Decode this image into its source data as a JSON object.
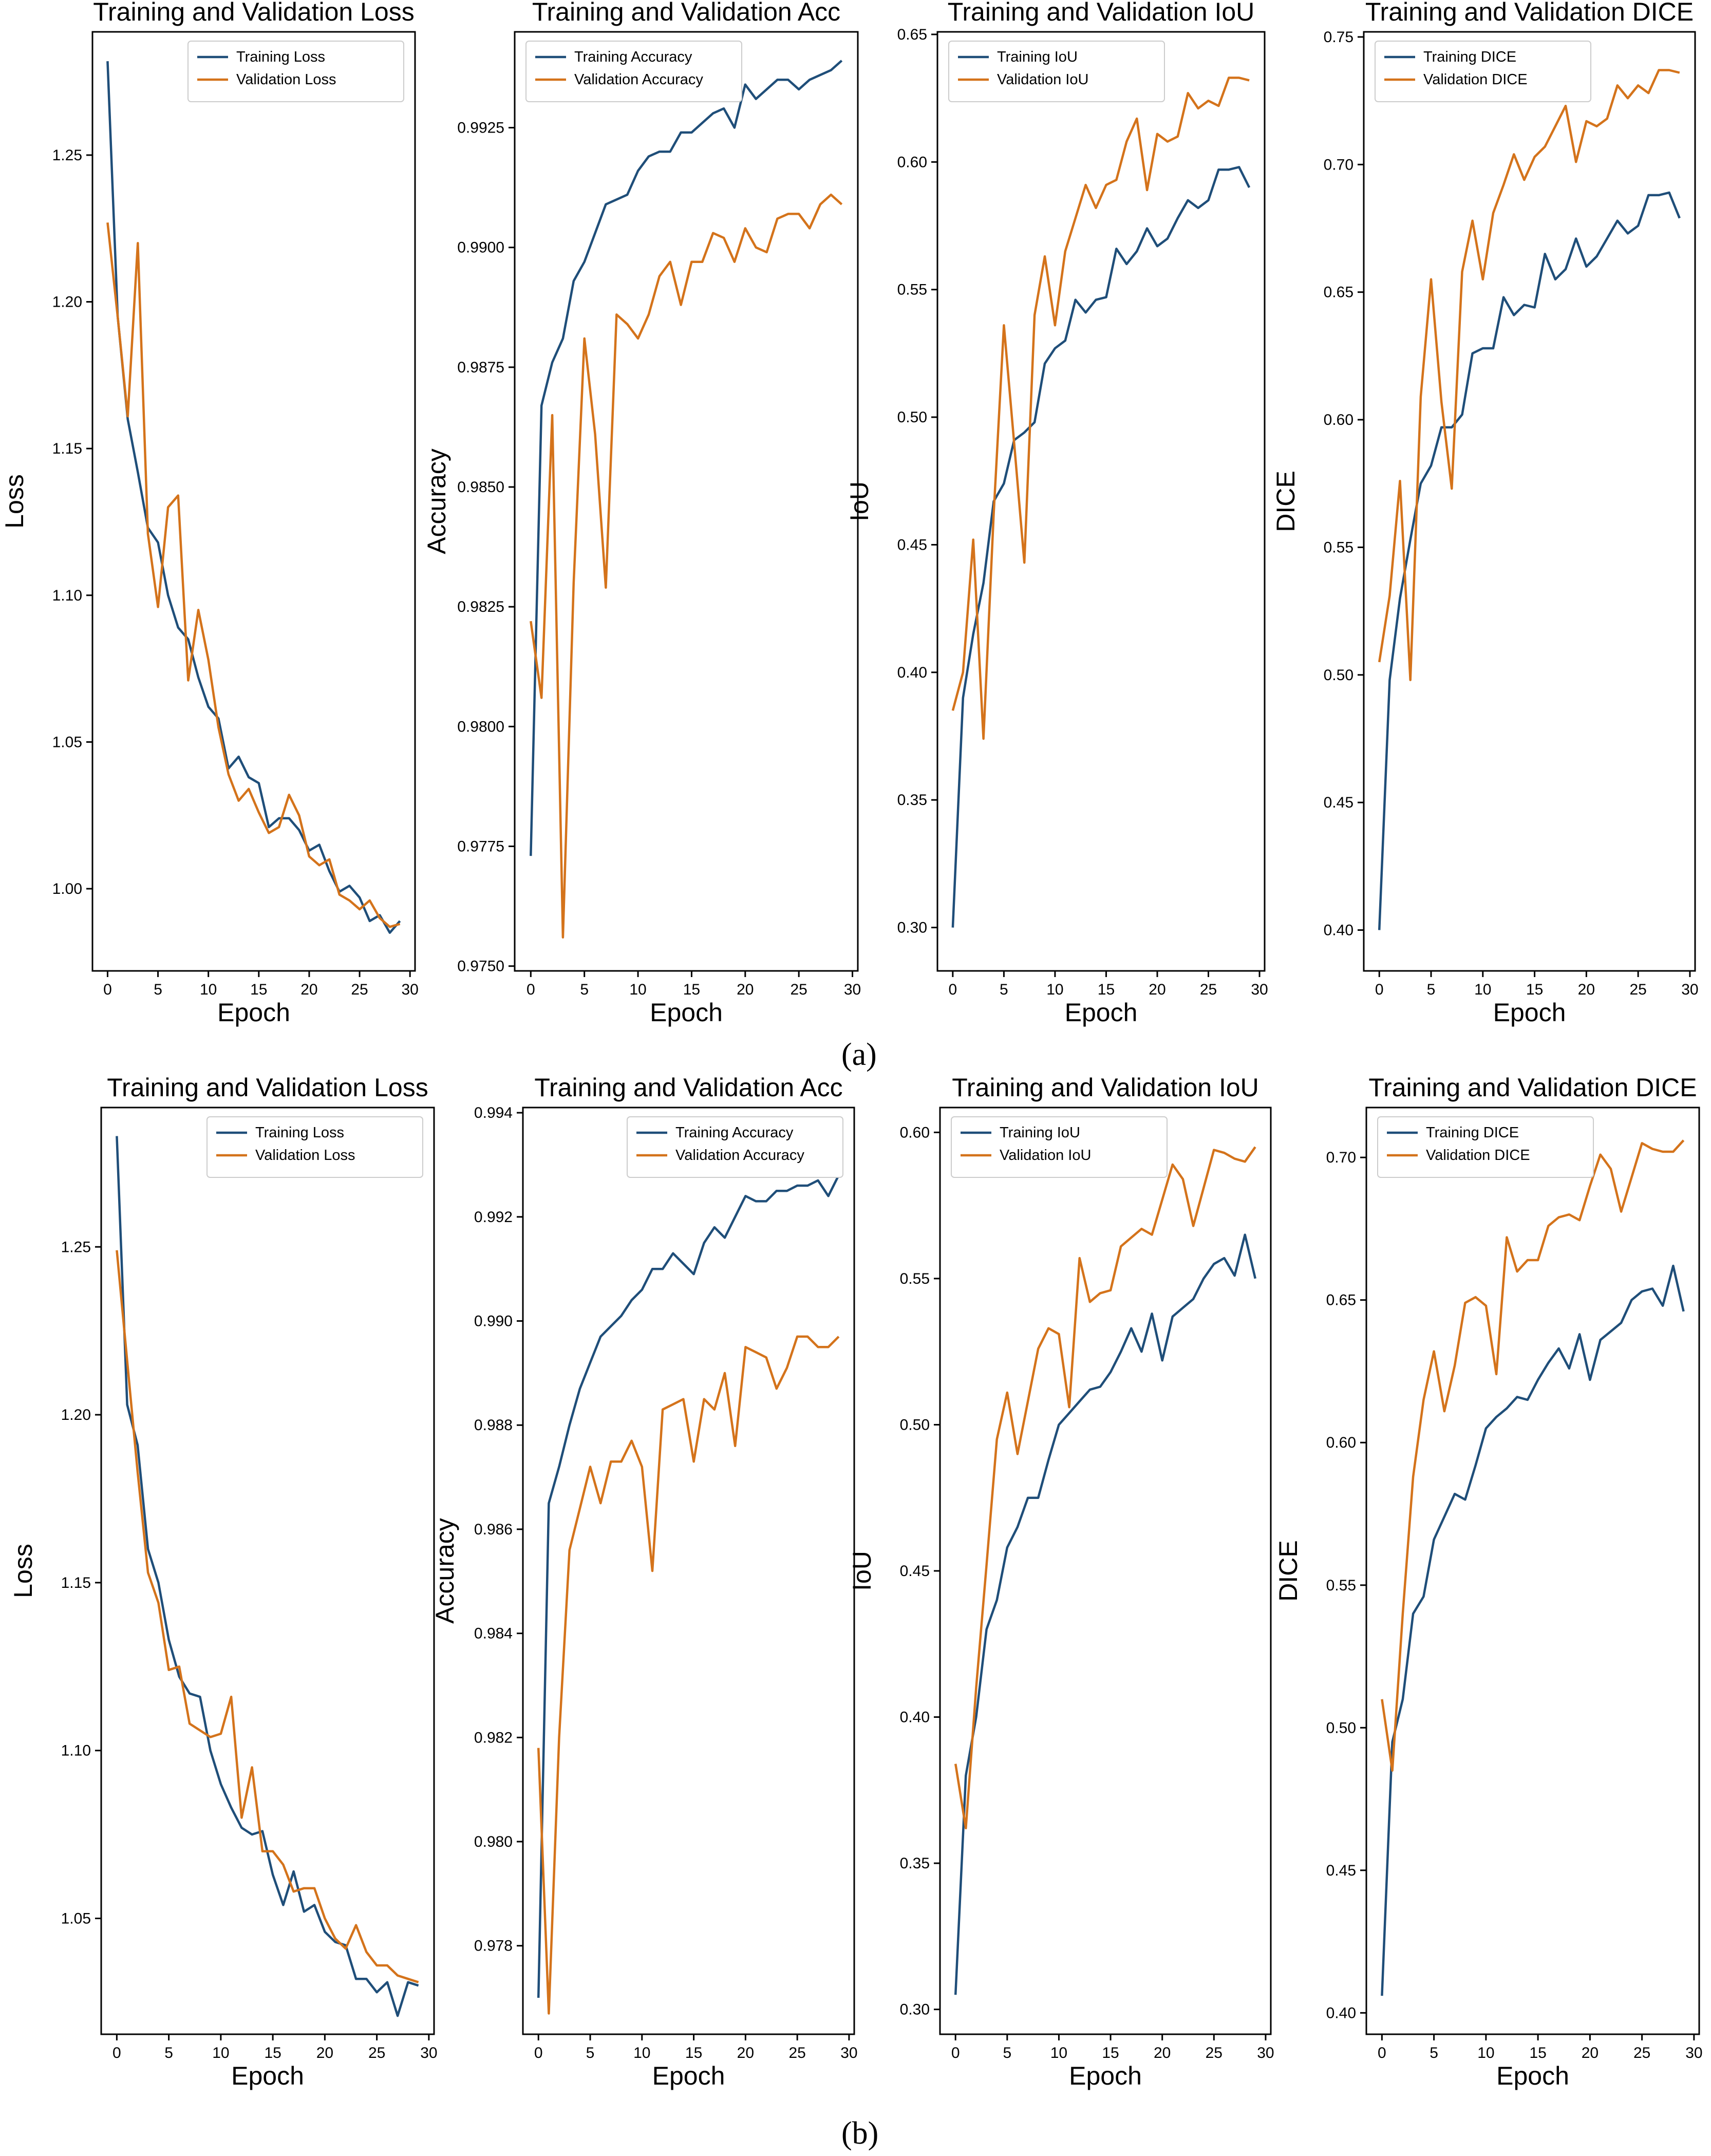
{
  "colors": {
    "training": "#1f4e79",
    "validation": "#d4731b",
    "axis": "#000000",
    "background": "#ffffff"
  },
  "panel_labels": {
    "a": "(a)",
    "b": "(b)"
  },
  "chart_data": [
    {
      "id": "a-loss",
      "type": "line",
      "title": "Training and Validation Loss",
      "xlabel": "Epoch",
      "ylabel": "Loss",
      "xlim": [
        -1.5,
        30.5
      ],
      "ylim": [
        0.972,
        1.292
      ],
      "xticks": [
        "0",
        "5",
        "10",
        "15",
        "20",
        "25",
        "30"
      ],
      "yticks": [
        "1.00",
        "1.05",
        "1.10",
        "1.15",
        "1.20",
        "1.25"
      ],
      "legend_loc": "top-right",
      "series": [
        {
          "name": "Training Loss",
          "color": "#1f4e79",
          "values": [
            1.282,
            1.195,
            1.16,
            1.142,
            1.123,
            1.118,
            1.1,
            1.089,
            1.085,
            1.072,
            1.062,
            1.058,
            1.041,
            1.045,
            1.038,
            1.036,
            1.021,
            1.024,
            1.024,
            1.02,
            1.013,
            1.015,
            1.006,
            0.999,
            1.001,
            0.997,
            0.989,
            0.991,
            0.985,
            0.989
          ]
        },
        {
          "name": "Validation Loss",
          "color": "#d4731b",
          "values": [
            1.227,
            1.195,
            1.161,
            1.22,
            1.121,
            1.096,
            1.13,
            1.134,
            1.071,
            1.095,
            1.078,
            1.055,
            1.039,
            1.03,
            1.034,
            1.026,
            1.019,
            1.021,
            1.032,
            1.025,
            1.011,
            1.008,
            1.01,
            0.998,
            0.996,
            0.993,
            0.996,
            0.99,
            0.987,
            0.988
          ]
        }
      ]
    },
    {
      "id": "a-acc",
      "type": "line",
      "title": "Training and Validation Acc",
      "xlabel": "Epoch",
      "ylabel": "Accuracy",
      "xlim": [
        -1.5,
        30.5
      ],
      "ylim": [
        0.9749,
        0.9945
      ],
      "xticks": [
        "0",
        "5",
        "10",
        "15",
        "20",
        "25",
        "30"
      ],
      "yticks": [
        "0.9750",
        "0.9775",
        "0.9800",
        "0.9825",
        "0.9850",
        "0.9875",
        "0.9900",
        "0.9925"
      ],
      "legend_loc": "top-left",
      "series": [
        {
          "name": "Training Accuracy",
          "color": "#1f4e79",
          "values": [
            0.9773,
            0.9867,
            0.9876,
            0.9881,
            0.9893,
            0.9897,
            0.9903,
            0.9909,
            0.991,
            0.9911,
            0.9916,
            0.9919,
            0.992,
            0.992,
            0.9924,
            0.9924,
            0.9926,
            0.9928,
            0.9929,
            0.9925,
            0.9934,
            0.9931,
            0.9933,
            0.9935,
            0.9935,
            0.9933,
            0.9935,
            0.9936,
            0.9937,
            0.9939
          ]
        },
        {
          "name": "Validation Accuracy",
          "color": "#d4731b",
          "values": [
            0.9822,
            0.9806,
            0.9865,
            0.9756,
            0.983,
            0.9881,
            0.9861,
            0.9829,
            0.9886,
            0.9884,
            0.9881,
            0.9886,
            0.9894,
            0.9897,
            0.9888,
            0.9897,
            0.9897,
            0.9903,
            0.9902,
            0.9897,
            0.9904,
            0.99,
            0.9899,
            0.9906,
            0.9907,
            0.9907,
            0.9904,
            0.9909,
            0.9911,
            0.9909
          ]
        }
      ]
    },
    {
      "id": "a-iou",
      "type": "line",
      "title": "Training and Validation IoU",
      "xlabel": "Epoch",
      "ylabel": "IoU",
      "xlim": [
        -1.5,
        30.5
      ],
      "ylim": [
        0.283,
        0.651
      ],
      "xticks": [
        "0",
        "5",
        "10",
        "15",
        "20",
        "25",
        "30"
      ],
      "yticks": [
        "0.30",
        "0.35",
        "0.40",
        "0.45",
        "0.50",
        "0.55",
        "0.60",
        "0.65"
      ],
      "legend_loc": "top-left",
      "series": [
        {
          "name": "Training IoU",
          "color": "#1f4e79",
          "values": [
            0.3,
            0.39,
            0.415,
            0.435,
            0.467,
            0.474,
            0.491,
            0.494,
            0.498,
            0.521,
            0.527,
            0.53,
            0.546,
            0.541,
            0.546,
            0.547,
            0.566,
            0.56,
            0.565,
            0.574,
            0.567,
            0.57,
            0.578,
            0.585,
            0.582,
            0.585,
            0.597,
            0.597,
            0.598,
            0.59
          ]
        },
        {
          "name": "Validation IoU",
          "color": "#d4731b",
          "values": [
            0.385,
            0.4,
            0.452,
            0.374,
            0.462,
            0.536,
            0.49,
            0.443,
            0.54,
            0.563,
            0.536,
            0.565,
            0.578,
            0.591,
            0.582,
            0.591,
            0.593,
            0.608,
            0.617,
            0.589,
            0.611,
            0.608,
            0.61,
            0.627,
            0.621,
            0.624,
            0.622,
            0.633,
            0.633,
            0.632
          ]
        }
      ]
    },
    {
      "id": "a-dice",
      "type": "line",
      "title": "Training and Validation DICE",
      "xlabel": "Epoch",
      "ylabel": "DICE",
      "xlim": [
        -1.5,
        30.5
      ],
      "ylim": [
        0.384,
        0.752
      ],
      "xticks": [
        "0",
        "5",
        "10",
        "15",
        "20",
        "25",
        "30"
      ],
      "yticks": [
        "0.40",
        "0.45",
        "0.50",
        "0.55",
        "0.60",
        "0.65",
        "0.70",
        "0.75"
      ],
      "legend_loc": "top-left",
      "series": [
        {
          "name": "Training DICE",
          "color": "#1f4e79",
          "values": [
            0.4,
            0.498,
            0.53,
            0.553,
            0.575,
            0.582,
            0.597,
            0.597,
            0.602,
            0.626,
            0.628,
            0.628,
            0.648,
            0.641,
            0.645,
            0.644,
            0.665,
            0.655,
            0.659,
            0.671,
            0.66,
            0.664,
            0.671,
            0.678,
            0.673,
            0.676,
            0.688,
            0.688,
            0.689,
            0.679
          ]
        },
        {
          "name": "Validation DICE",
          "color": "#d4731b",
          "values": [
            0.505,
            0.531,
            0.576,
            0.498,
            0.609,
            0.655,
            0.607,
            0.573,
            0.658,
            0.678,
            0.655,
            0.681,
            0.692,
            0.704,
            0.694,
            0.703,
            0.707,
            0.715,
            0.723,
            0.701,
            0.717,
            0.715,
            0.718,
            0.731,
            0.726,
            0.731,
            0.728,
            0.737,
            0.737,
            0.736
          ]
        }
      ]
    },
    {
      "id": "b-loss",
      "type": "line",
      "title": "Training and Validation Loss",
      "xlabel": "Epoch",
      "ylabel": "Loss",
      "xlim": [
        -1.5,
        30.5
      ],
      "ylim": [
        1.0155,
        1.2915
      ],
      "xticks": [
        "0",
        "5",
        "10",
        "15",
        "20",
        "25",
        "30"
      ],
      "yticks": [
        "1.05",
        "1.10",
        "1.15",
        "1.20",
        "1.25"
      ],
      "legend_loc": "top-right",
      "series": [
        {
          "name": "Training Loss",
          "color": "#1f4e79",
          "values": [
            1.283,
            1.203,
            1.191,
            1.16,
            1.15,
            1.133,
            1.122,
            1.117,
            1.116,
            1.1,
            1.09,
            1.083,
            1.077,
            1.075,
            1.076,
            1.063,
            1.054,
            1.064,
            1.052,
            1.054,
            1.046,
            1.043,
            1.042,
            1.032,
            1.032,
            1.028,
            1.031,
            1.021,
            1.031,
            1.03
          ]
        },
        {
          "name": "Validation Loss",
          "color": "#d4731b",
          "values": [
            1.249,
            1.216,
            1.183,
            1.153,
            1.144,
            1.124,
            1.125,
            1.108,
            1.106,
            1.104,
            1.105,
            1.116,
            1.08,
            1.095,
            1.07,
            1.07,
            1.066,
            1.058,
            1.059,
            1.059,
            1.05,
            1.044,
            1.041,
            1.048,
            1.04,
            1.036,
            1.036,
            1.033,
            1.032,
            1.031
          ]
        }
      ]
    },
    {
      "id": "b-acc",
      "type": "line",
      "title": "Training and Validation Acc",
      "xlabel": "Epoch",
      "ylabel": "Accuracy",
      "xlim": [
        -1.5,
        30.5
      ],
      "ylim": [
        0.9763,
        0.9941
      ],
      "xticks": [
        "0",
        "5",
        "10",
        "15",
        "20",
        "25",
        "30"
      ],
      "yticks": [
        "0.978",
        "0.980",
        "0.982",
        "0.984",
        "0.986",
        "0.988",
        "0.990",
        "0.992",
        "0.994"
      ],
      "legend_loc": "top-right",
      "series": [
        {
          "name": "Training Accuracy",
          "color": "#1f4e79",
          "values": [
            0.977,
            0.9865,
            0.9872,
            0.988,
            0.9887,
            0.9892,
            0.9897,
            0.9899,
            0.9901,
            0.9904,
            0.9906,
            0.991,
            0.991,
            0.9913,
            0.9911,
            0.9909,
            0.9915,
            0.9918,
            0.9916,
            0.992,
            0.9924,
            0.9923,
            0.9923,
            0.9925,
            0.9925,
            0.9926,
            0.9926,
            0.9927,
            0.9924,
            0.9928
          ]
        },
        {
          "name": "Validation Accuracy",
          "color": "#d4731b",
          "values": [
            0.9818,
            0.9767,
            0.982,
            0.9856,
            0.9864,
            0.9872,
            0.9865,
            0.9873,
            0.9873,
            0.9877,
            0.9872,
            0.9852,
            0.9883,
            0.9884,
            0.9885,
            0.9873,
            0.9885,
            0.9883,
            0.989,
            0.9876,
            0.9895,
            0.9894,
            0.9893,
            0.9887,
            0.9891,
            0.9897,
            0.9897,
            0.9895,
            0.9895,
            0.9897
          ]
        }
      ]
    },
    {
      "id": "b-iou",
      "type": "line",
      "title": "Training and Validation IoU",
      "xlabel": "Epoch",
      "ylabel": "IoU",
      "xlim": [
        -1.5,
        30.5
      ],
      "ylim": [
        0.2915,
        0.6085
      ],
      "xticks": [
        "0",
        "5",
        "10",
        "15",
        "20",
        "25",
        "30"
      ],
      "yticks": [
        "0.30",
        "0.35",
        "0.40",
        "0.45",
        "0.50",
        "0.55",
        "0.60"
      ],
      "legend_loc": "top-left",
      "series": [
        {
          "name": "Training IoU",
          "color": "#1f4e79",
          "values": [
            0.305,
            0.38,
            0.4,
            0.43,
            0.44,
            0.458,
            0.465,
            0.475,
            0.475,
            0.488,
            0.5,
            0.504,
            0.508,
            0.512,
            0.513,
            0.518,
            0.525,
            0.533,
            0.525,
            0.538,
            0.522,
            0.537,
            0.54,
            0.543,
            0.55,
            0.555,
            0.557,
            0.551,
            0.565,
            0.55
          ]
        },
        {
          "name": "Validation IoU",
          "color": "#d4731b",
          "values": [
            0.384,
            0.362,
            0.41,
            0.452,
            0.495,
            0.511,
            0.49,
            0.508,
            0.526,
            0.533,
            0.531,
            0.506,
            0.557,
            0.542,
            0.545,
            0.546,
            0.561,
            0.564,
            0.567,
            0.565,
            0.577,
            0.589,
            0.584,
            0.568,
            0.581,
            0.594,
            0.593,
            0.591,
            0.59,
            0.595
          ]
        }
      ]
    },
    {
      "id": "b-dice",
      "type": "line",
      "title": "Training and Validation DICE",
      "xlabel": "Epoch",
      "ylabel": "DICE",
      "xlim": [
        -1.5,
        30.5
      ],
      "ylim": [
        0.3925,
        0.7175
      ],
      "xticks": [
        "0",
        "5",
        "10",
        "15",
        "20",
        "25",
        "30"
      ],
      "yticks": [
        "0.40",
        "0.45",
        "0.50",
        "0.55",
        "0.60",
        "0.65",
        "0.70"
      ],
      "legend_loc": "top-left",
      "series": [
        {
          "name": "Training DICE",
          "color": "#1f4e79",
          "values": [
            0.406,
            0.495,
            0.51,
            0.54,
            0.546,
            0.566,
            0.574,
            0.582,
            0.58,
            0.592,
            0.605,
            0.609,
            0.612,
            0.616,
            0.615,
            0.622,
            0.628,
            0.633,
            0.626,
            0.638,
            0.622,
            0.636,
            0.639,
            0.642,
            0.65,
            0.653,
            0.654,
            0.648,
            0.662,
            0.646
          ]
        },
        {
          "name": "Validation DICE",
          "color": "#d4731b",
          "values": [
            0.51,
            0.485,
            0.54,
            0.588,
            0.615,
            0.632,
            0.611,
            0.627,
            0.649,
            0.651,
            0.648,
            0.624,
            0.672,
            0.66,
            0.664,
            0.664,
            0.676,
            0.679,
            0.68,
            0.678,
            0.69,
            0.701,
            0.696,
            0.681,
            0.693,
            0.705,
            0.703,
            0.702,
            0.702,
            0.706
          ]
        }
      ]
    }
  ]
}
